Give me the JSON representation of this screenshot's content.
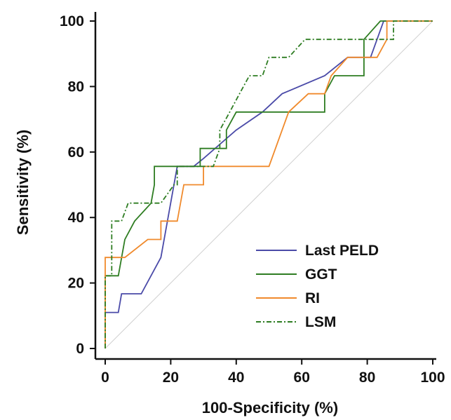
{
  "chart_data": {
    "type": "line",
    "title": "",
    "xlabel": "100-Specificity (%)",
    "ylabel": "Sensitivity (%)",
    "xlim": [
      0,
      100
    ],
    "ylim": [
      0,
      100
    ],
    "xticks": [
      "0",
      "20",
      "40",
      "60",
      "80",
      "100"
    ],
    "yticks": [
      "0",
      "20",
      "40",
      "60",
      "80",
      "100"
    ],
    "grid": false,
    "legend_position": "bottom-right",
    "reference_line": {
      "from": [
        0,
        0
      ],
      "to": [
        100,
        100
      ],
      "color": "#d0d0d0"
    },
    "series": [
      {
        "name": "Last PELD",
        "color": "#4a4aa8",
        "style": "solid",
        "points": [
          [
            0,
            0
          ],
          [
            0,
            11
          ],
          [
            4,
            11
          ],
          [
            5,
            16.7
          ],
          [
            11,
            16.7
          ],
          [
            17,
            27.8
          ],
          [
            22,
            55.6
          ],
          [
            27,
            55.6
          ],
          [
            30,
            58
          ],
          [
            40,
            66.7
          ],
          [
            48,
            72.2
          ],
          [
            54,
            77.8
          ],
          [
            67,
            83.3
          ],
          [
            74,
            88.9
          ],
          [
            81,
            88.9
          ],
          [
            85,
            100
          ],
          [
            100,
            100
          ]
        ]
      },
      {
        "name": "GGT",
        "color": "#2e7d22",
        "style": "solid",
        "points": [
          [
            0,
            0
          ],
          [
            0,
            22.2
          ],
          [
            4,
            22.2
          ],
          [
            6,
            33.3
          ],
          [
            9,
            38.9
          ],
          [
            14,
            44.4
          ],
          [
            15,
            50
          ],
          [
            15,
            55.6
          ],
          [
            29,
            55.6
          ],
          [
            29,
            61.1
          ],
          [
            37,
            61.1
          ],
          [
            37,
            66.7
          ],
          [
            40,
            72.2
          ],
          [
            67,
            72.2
          ],
          [
            67,
            77.8
          ],
          [
            70,
            83.3
          ],
          [
            79,
            83.3
          ],
          [
            79,
            94.4
          ],
          [
            84,
            100
          ],
          [
            100,
            100
          ]
        ]
      },
      {
        "name": "RI",
        "color": "#f08a2c",
        "style": "solid",
        "points": [
          [
            0,
            0
          ],
          [
            0,
            27.8
          ],
          [
            6,
            27.8
          ],
          [
            13,
            33.3
          ],
          [
            17,
            33.3
          ],
          [
            17,
            38.9
          ],
          [
            22,
            38.9
          ],
          [
            24,
            50
          ],
          [
            30,
            50
          ],
          [
            30,
            55.6
          ],
          [
            50,
            55.6
          ],
          [
            56,
            72.2
          ],
          [
            62,
            77.8
          ],
          [
            67,
            77.8
          ],
          [
            69,
            83.3
          ],
          [
            74,
            88.9
          ],
          [
            83,
            88.9
          ],
          [
            86,
            94.4
          ],
          [
            86,
            100
          ],
          [
            100,
            100
          ]
        ]
      },
      {
        "name": "LSM",
        "color": "#2e7d22",
        "style": "dashdot",
        "points": [
          [
            0,
            0
          ],
          [
            0,
            22.2
          ],
          [
            2,
            22.2
          ],
          [
            2,
            38.9
          ],
          [
            5,
            38.9
          ],
          [
            7,
            44.4
          ],
          [
            12,
            44.4
          ],
          [
            17,
            44.4
          ],
          [
            21,
            50
          ],
          [
            22,
            50
          ],
          [
            22,
            55.6
          ],
          [
            33,
            55.6
          ],
          [
            35,
            61.1
          ],
          [
            35,
            66.7
          ],
          [
            38,
            72.2
          ],
          [
            41,
            77.8
          ],
          [
            44,
            83.3
          ],
          [
            48,
            83.3
          ],
          [
            50,
            88.9
          ],
          [
            56,
            88.9
          ],
          [
            61,
            94.4
          ],
          [
            78,
            94.4
          ],
          [
            88,
            94.4
          ],
          [
            88,
            100
          ],
          [
            100,
            100
          ]
        ]
      }
    ]
  }
}
